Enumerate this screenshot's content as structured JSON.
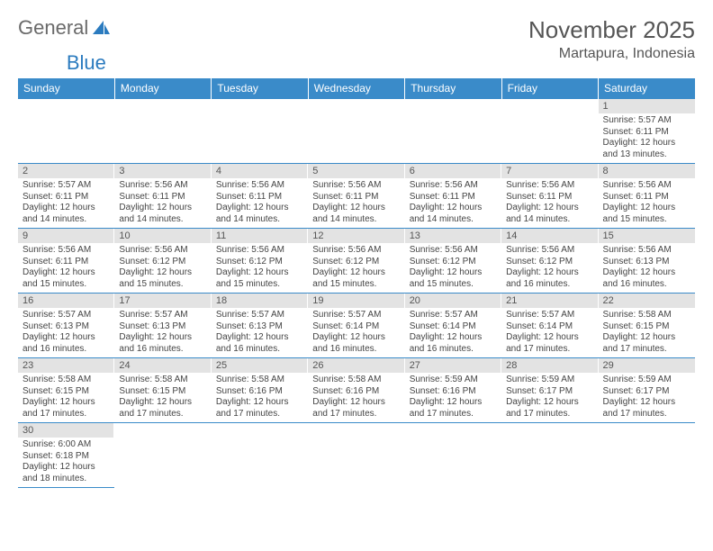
{
  "logo": {
    "word1": "General",
    "word2": "Blue",
    "sail_color": "#2b7bbf"
  },
  "title": "November 2025",
  "location": "Martapura, Indonesia",
  "colors": {
    "header_bg": "#3a8bc9",
    "header_text": "#ffffff",
    "daynum_bg": "#e3e3e3",
    "border": "#3a8bc9"
  },
  "weekdays": [
    "Sunday",
    "Monday",
    "Tuesday",
    "Wednesday",
    "Thursday",
    "Friday",
    "Saturday"
  ],
  "weeks": [
    [
      null,
      null,
      null,
      null,
      null,
      null,
      {
        "n": "1",
        "sr": "Sunrise: 5:57 AM",
        "ss": "Sunset: 6:11 PM",
        "dl": "Daylight: 12 hours and 13 minutes."
      }
    ],
    [
      {
        "n": "2",
        "sr": "Sunrise: 5:57 AM",
        "ss": "Sunset: 6:11 PM",
        "dl": "Daylight: 12 hours and 14 minutes."
      },
      {
        "n": "3",
        "sr": "Sunrise: 5:56 AM",
        "ss": "Sunset: 6:11 PM",
        "dl": "Daylight: 12 hours and 14 minutes."
      },
      {
        "n": "4",
        "sr": "Sunrise: 5:56 AM",
        "ss": "Sunset: 6:11 PM",
        "dl": "Daylight: 12 hours and 14 minutes."
      },
      {
        "n": "5",
        "sr": "Sunrise: 5:56 AM",
        "ss": "Sunset: 6:11 PM",
        "dl": "Daylight: 12 hours and 14 minutes."
      },
      {
        "n": "6",
        "sr": "Sunrise: 5:56 AM",
        "ss": "Sunset: 6:11 PM",
        "dl": "Daylight: 12 hours and 14 minutes."
      },
      {
        "n": "7",
        "sr": "Sunrise: 5:56 AM",
        "ss": "Sunset: 6:11 PM",
        "dl": "Daylight: 12 hours and 14 minutes."
      },
      {
        "n": "8",
        "sr": "Sunrise: 5:56 AM",
        "ss": "Sunset: 6:11 PM",
        "dl": "Daylight: 12 hours and 15 minutes."
      }
    ],
    [
      {
        "n": "9",
        "sr": "Sunrise: 5:56 AM",
        "ss": "Sunset: 6:11 PM",
        "dl": "Daylight: 12 hours and 15 minutes."
      },
      {
        "n": "10",
        "sr": "Sunrise: 5:56 AM",
        "ss": "Sunset: 6:12 PM",
        "dl": "Daylight: 12 hours and 15 minutes."
      },
      {
        "n": "11",
        "sr": "Sunrise: 5:56 AM",
        "ss": "Sunset: 6:12 PM",
        "dl": "Daylight: 12 hours and 15 minutes."
      },
      {
        "n": "12",
        "sr": "Sunrise: 5:56 AM",
        "ss": "Sunset: 6:12 PM",
        "dl": "Daylight: 12 hours and 15 minutes."
      },
      {
        "n": "13",
        "sr": "Sunrise: 5:56 AM",
        "ss": "Sunset: 6:12 PM",
        "dl": "Daylight: 12 hours and 15 minutes."
      },
      {
        "n": "14",
        "sr": "Sunrise: 5:56 AM",
        "ss": "Sunset: 6:12 PM",
        "dl": "Daylight: 12 hours and 16 minutes."
      },
      {
        "n": "15",
        "sr": "Sunrise: 5:56 AM",
        "ss": "Sunset: 6:13 PM",
        "dl": "Daylight: 12 hours and 16 minutes."
      }
    ],
    [
      {
        "n": "16",
        "sr": "Sunrise: 5:57 AM",
        "ss": "Sunset: 6:13 PM",
        "dl": "Daylight: 12 hours and 16 minutes."
      },
      {
        "n": "17",
        "sr": "Sunrise: 5:57 AM",
        "ss": "Sunset: 6:13 PM",
        "dl": "Daylight: 12 hours and 16 minutes."
      },
      {
        "n": "18",
        "sr": "Sunrise: 5:57 AM",
        "ss": "Sunset: 6:13 PM",
        "dl": "Daylight: 12 hours and 16 minutes."
      },
      {
        "n": "19",
        "sr": "Sunrise: 5:57 AM",
        "ss": "Sunset: 6:14 PM",
        "dl": "Daylight: 12 hours and 16 minutes."
      },
      {
        "n": "20",
        "sr": "Sunrise: 5:57 AM",
        "ss": "Sunset: 6:14 PM",
        "dl": "Daylight: 12 hours and 16 minutes."
      },
      {
        "n": "21",
        "sr": "Sunrise: 5:57 AM",
        "ss": "Sunset: 6:14 PM",
        "dl": "Daylight: 12 hours and 17 minutes."
      },
      {
        "n": "22",
        "sr": "Sunrise: 5:58 AM",
        "ss": "Sunset: 6:15 PM",
        "dl": "Daylight: 12 hours and 17 minutes."
      }
    ],
    [
      {
        "n": "23",
        "sr": "Sunrise: 5:58 AM",
        "ss": "Sunset: 6:15 PM",
        "dl": "Daylight: 12 hours and 17 minutes."
      },
      {
        "n": "24",
        "sr": "Sunrise: 5:58 AM",
        "ss": "Sunset: 6:15 PM",
        "dl": "Daylight: 12 hours and 17 minutes."
      },
      {
        "n": "25",
        "sr": "Sunrise: 5:58 AM",
        "ss": "Sunset: 6:16 PM",
        "dl": "Daylight: 12 hours and 17 minutes."
      },
      {
        "n": "26",
        "sr": "Sunrise: 5:58 AM",
        "ss": "Sunset: 6:16 PM",
        "dl": "Daylight: 12 hours and 17 minutes."
      },
      {
        "n": "27",
        "sr": "Sunrise: 5:59 AM",
        "ss": "Sunset: 6:16 PM",
        "dl": "Daylight: 12 hours and 17 minutes."
      },
      {
        "n": "28",
        "sr": "Sunrise: 5:59 AM",
        "ss": "Sunset: 6:17 PM",
        "dl": "Daylight: 12 hours and 17 minutes."
      },
      {
        "n": "29",
        "sr": "Sunrise: 5:59 AM",
        "ss": "Sunset: 6:17 PM",
        "dl": "Daylight: 12 hours and 17 minutes."
      }
    ],
    [
      {
        "n": "30",
        "sr": "Sunrise: 6:00 AM",
        "ss": "Sunset: 6:18 PM",
        "dl": "Daylight: 12 hours and 18 minutes."
      },
      null,
      null,
      null,
      null,
      null,
      null
    ]
  ]
}
